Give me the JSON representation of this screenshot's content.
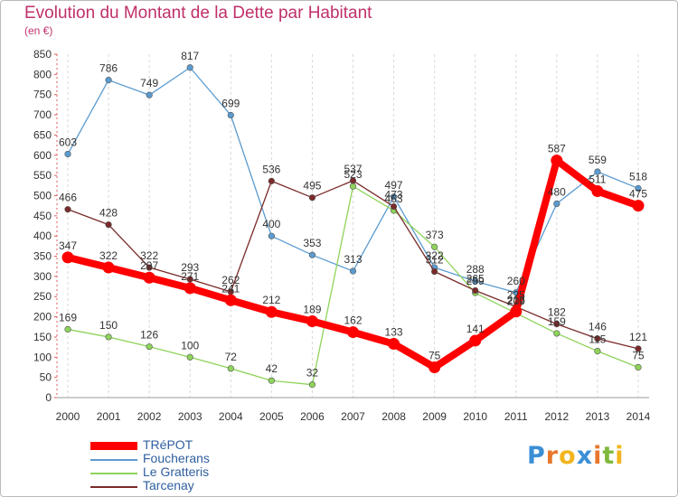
{
  "title": "Evolution du Montant de la Dette par Habitant",
  "unit": "(en €)",
  "logo": {
    "letters": [
      "P",
      "r",
      "o",
      "x",
      "i",
      "t",
      "i"
    ],
    "colors": [
      "#3a8fd6",
      "#e8772e",
      "#f2b51e",
      "#3a8fd6",
      "#e8772e",
      "#7fb83c",
      "#f2b51e"
    ]
  },
  "chart_data": {
    "type": "line",
    "title": "Evolution du Montant de la Dette par Habitant",
    "ylabel": "(en €)",
    "xlabel": "",
    "x": [
      "2000",
      "2001",
      "2002",
      "2003",
      "2004",
      "2005",
      "2006",
      "2007",
      "2008",
      "2009",
      "2010",
      "2011",
      "2012",
      "2013",
      "2014"
    ],
    "ylim": [
      0,
      850
    ],
    "yticks": [
      "0",
      "50",
      "100",
      "150",
      "200",
      "250",
      "300",
      "350",
      "400",
      "450",
      "500",
      "550",
      "600",
      "650",
      "700",
      "750",
      "800",
      "850"
    ],
    "grid": "vertical",
    "legend": "bottom-left",
    "series": [
      {
        "name": "TRéPOT",
        "color": "#ff0000",
        "values": [
          347,
          322,
          297,
          271,
          241,
          212,
          189,
          162,
          133,
          75,
          141,
          213,
          587,
          511,
          475
        ]
      },
      {
        "name": "Foucherans",
        "color": "#5b9bd0",
        "values": [
          603,
          786,
          749,
          817,
          699,
          400,
          353,
          313,
          497,
          322,
          288,
          260,
          480,
          559,
          518
        ]
      },
      {
        "name": "Le Gratteris",
        "color": "#8ed35a",
        "values": [
          169,
          150,
          126,
          100,
          72,
          42,
          32,
          523,
          463,
          373,
          259,
          209,
          159,
          115,
          75
        ]
      },
      {
        "name": "Tarcenay",
        "color": "#7a2a2a",
        "values": [
          466,
          428,
          322,
          293,
          262,
          536,
          495,
          537,
          473,
          312,
          265,
          225,
          182,
          146,
          121
        ]
      }
    ]
  }
}
